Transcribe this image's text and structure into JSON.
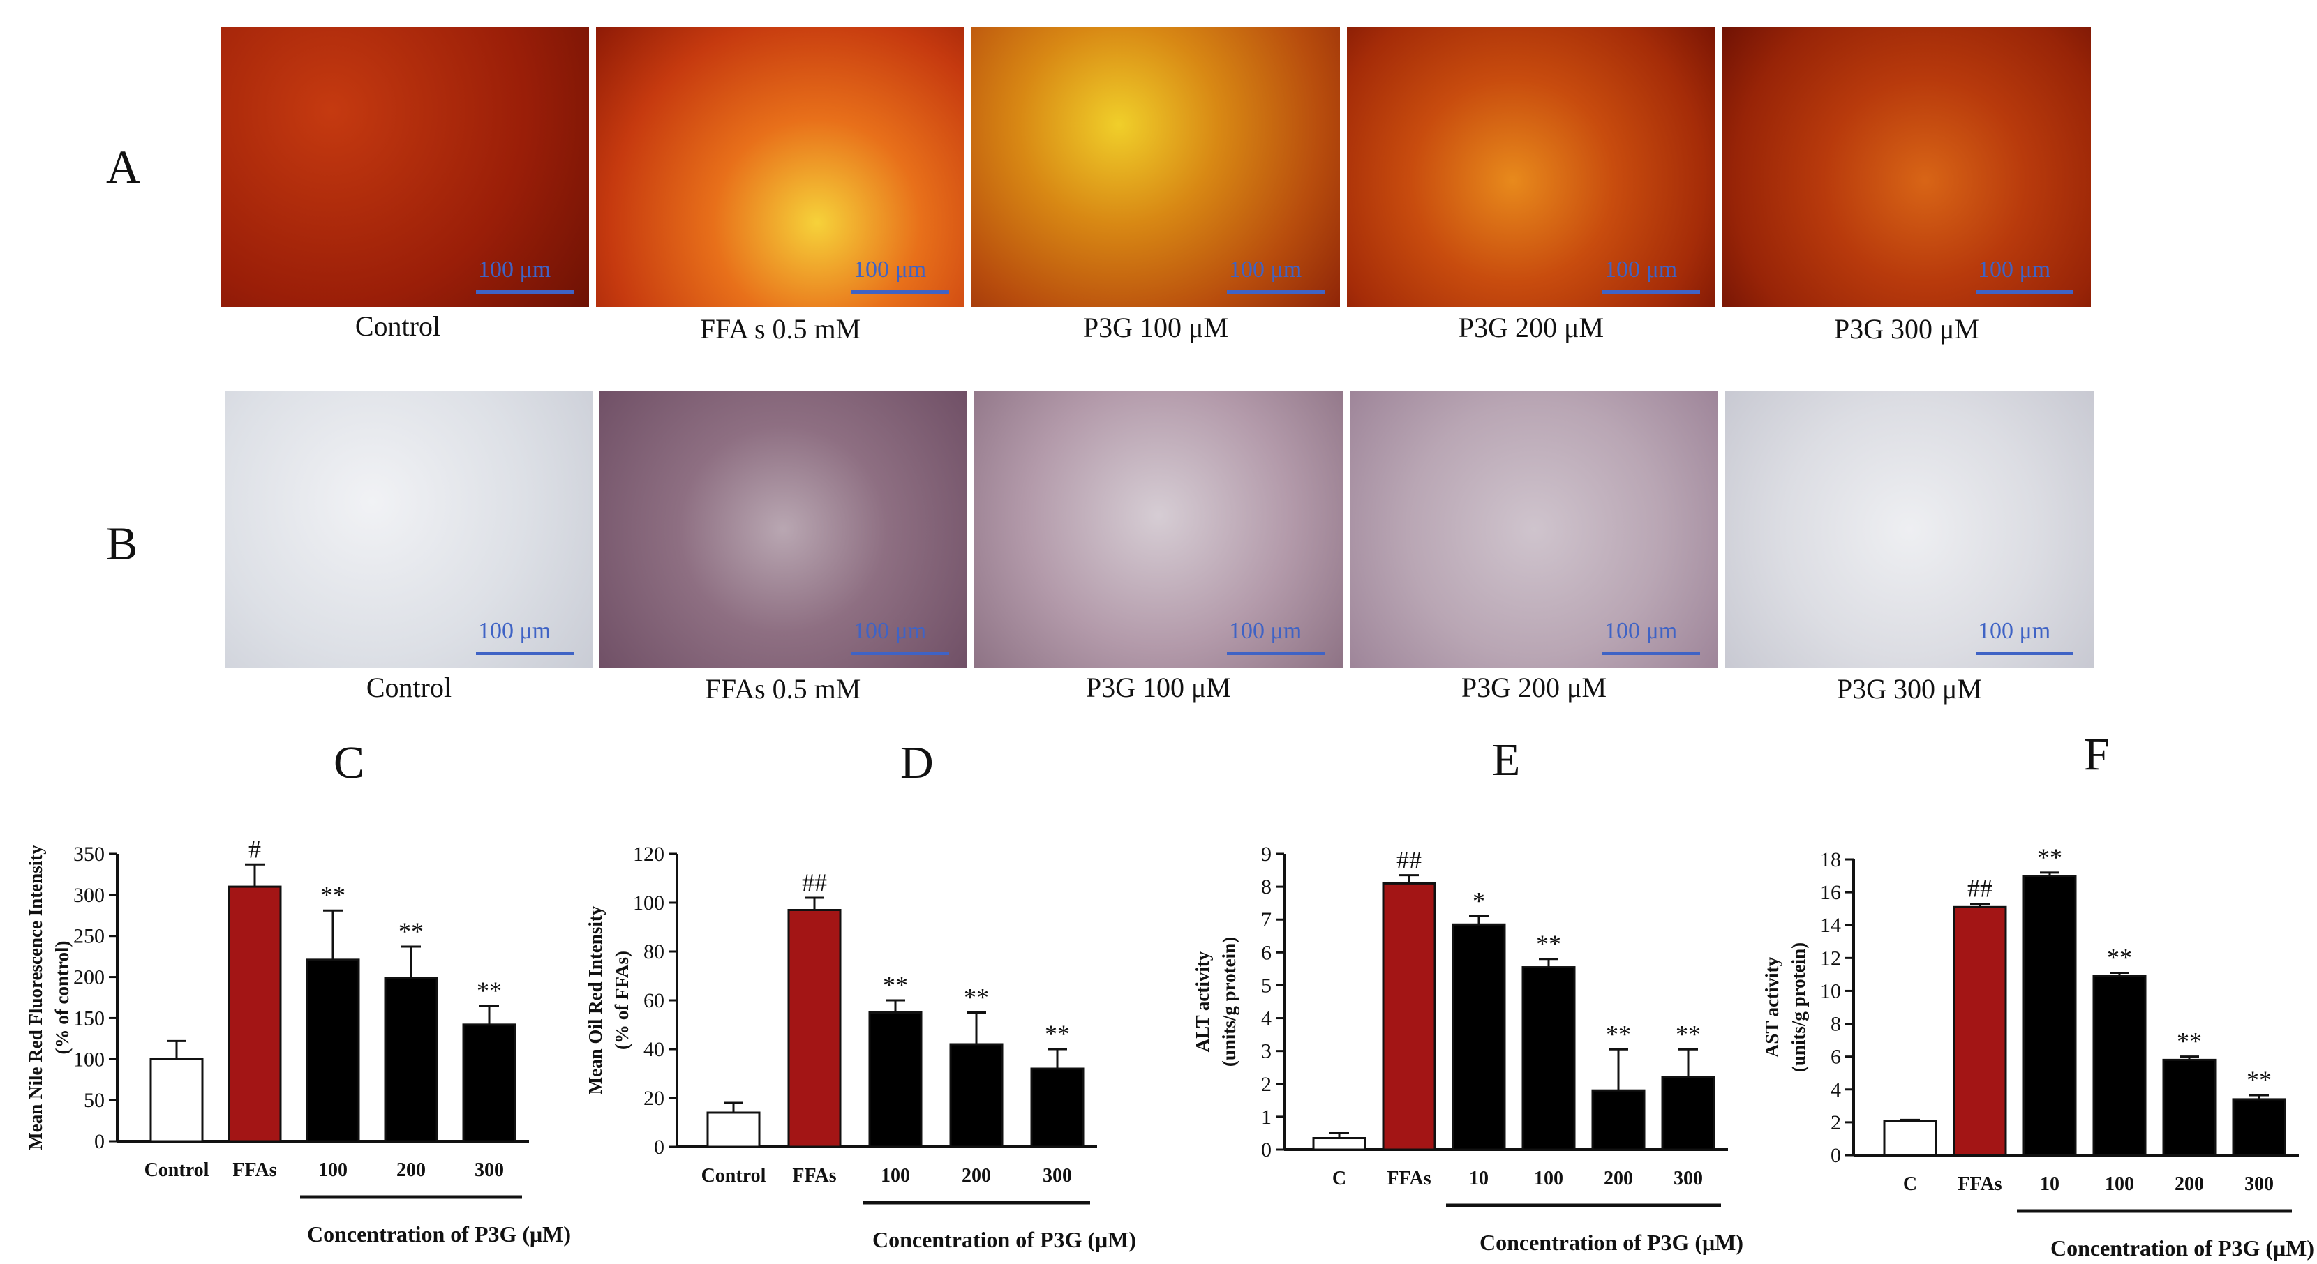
{
  "rows": [
    {
      "letter": "A",
      "stain": "fluorescence",
      "images": [
        {
          "caption": "Control",
          "scale": "100 μm"
        },
        {
          "caption": "FFA s 0.5 mM",
          "scale": "100 μm"
        },
        {
          "caption": "P3G 100 μM",
          "scale": "100 μm"
        },
        {
          "caption": "P3G 200 μM",
          "scale": "100 μm"
        },
        {
          "caption": "P3G 300 μM",
          "scale": "100 μm"
        }
      ]
    },
    {
      "letter": "B",
      "stain": "oil-red",
      "images": [
        {
          "caption": "Control",
          "scale": "100 μm"
        },
        {
          "caption": "FFAs 0.5 mM",
          "scale": "100 μm"
        },
        {
          "caption": "P3G 100 μM",
          "scale": "100 μm"
        },
        {
          "caption": "P3G 200 μM",
          "scale": "100 μm"
        },
        {
          "caption": "P3G 300 μM",
          "scale": "100 μm"
        }
      ]
    }
  ],
  "colors": {
    "control": "#ffffff",
    "ffa": "#a31515",
    "treatment": "#000000",
    "scalebar": "#3f63c5"
  },
  "chart_data": [
    {
      "panel": "C",
      "type": "bar",
      "ylabel": "Mean Nile Red Fluorescence Intensity\n(% of control)",
      "xlabel": "Concentration of P3G (μM)",
      "categories": [
        "Control",
        "FFAs",
        "100",
        "200",
        "300"
      ],
      "values": [
        100,
        310,
        221,
        199,
        142
      ],
      "errors": [
        22,
        27,
        60,
        38,
        23
      ],
      "annotations": [
        "",
        "#",
        "**",
        "**",
        "**"
      ],
      "ylim": [
        0,
        350
      ],
      "yticks": [
        0,
        50,
        100,
        150,
        200,
        250,
        300,
        350
      ],
      "underline": [
        2,
        4
      ]
    },
    {
      "panel": "D",
      "type": "bar",
      "ylabel": "Mean Oil Red Intensity\n(% of FFAs)",
      "xlabel": "Concentration of P3G (μM)",
      "categories": [
        "Control",
        "FFAs",
        "100",
        "200",
        "300"
      ],
      "values": [
        14,
        97,
        55,
        42,
        32
      ],
      "errors": [
        4,
        5,
        5,
        13,
        8
      ],
      "annotations": [
        "",
        "##",
        "**",
        "**",
        "**"
      ],
      "ylim": [
        0,
        120
      ],
      "yticks": [
        0,
        20,
        40,
        60,
        80,
        100,
        120
      ],
      "underline": [
        2,
        4
      ]
    },
    {
      "panel": "E",
      "type": "bar",
      "ylabel": "ALT activity\n(units/g protein)",
      "xlabel": "Concentration of P3G (μM)",
      "categories": [
        "C",
        "FFAs",
        "10",
        "100",
        "200",
        "300"
      ],
      "values": [
        0.35,
        8.1,
        6.85,
        5.55,
        1.8,
        2.2
      ],
      "errors": [
        0.15,
        0.25,
        0.25,
        0.25,
        1.25,
        0.85
      ],
      "annotations": [
        "",
        "##",
        "*",
        "**",
        "**",
        "**"
      ],
      "ylim": [
        0,
        9
      ],
      "yticks": [
        0,
        1,
        2,
        3,
        4,
        5,
        6,
        7,
        8,
        9
      ],
      "underline": [
        2,
        5
      ]
    },
    {
      "panel": "F",
      "type": "bar",
      "ylabel": "AST activity\n(units/g protein)",
      "xlabel": "Concentration of P3G (μM)",
      "categories": [
        "C",
        "FFAs",
        "10",
        "100",
        "200",
        "300"
      ],
      "values": [
        2.1,
        15.1,
        17.0,
        10.9,
        5.8,
        3.4
      ],
      "errors": [
        0.05,
        0.2,
        0.2,
        0.2,
        0.2,
        0.25
      ],
      "annotations": [
        "",
        "##",
        "**",
        "**",
        "**",
        "**"
      ],
      "ylim": [
        0,
        18
      ],
      "yticks": [
        0,
        2,
        4,
        6,
        8,
        10,
        12,
        14,
        16,
        18
      ],
      "underline": [
        2,
        5
      ]
    }
  ]
}
